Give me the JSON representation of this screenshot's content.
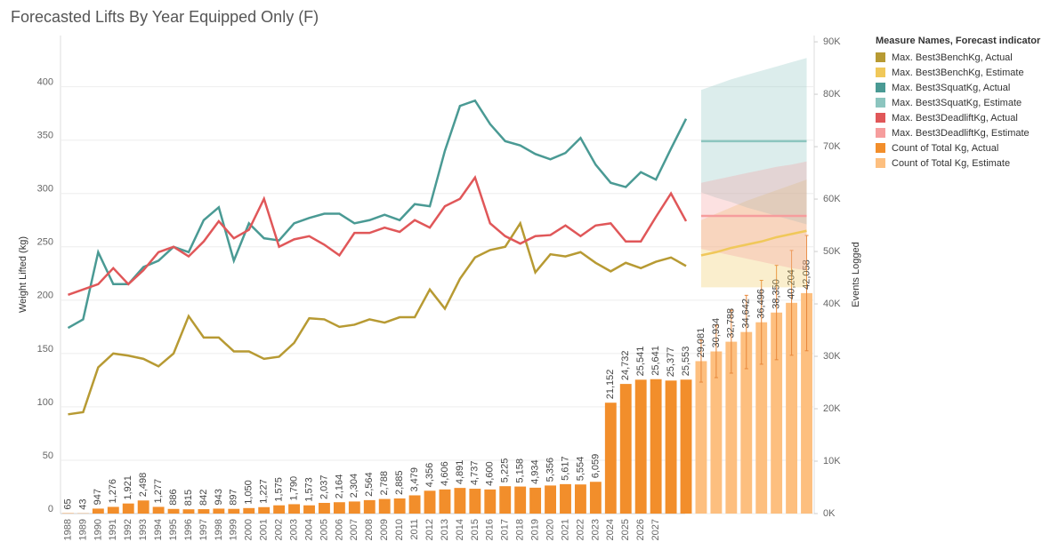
{
  "chart_data": {
    "type": "combo",
    "title": "Forecasted Lifts By Year Equipped Only (F)",
    "y_label": "Weight Lifted (kg)",
    "y2_label": "Events Logged",
    "legend_title": "Measure Names, Forecast indicator",
    "categories": [
      1988,
      1989,
      1990,
      1991,
      1992,
      1993,
      1994,
      1995,
      1996,
      1997,
      1998,
      1999,
      2000,
      2001,
      2002,
      2003,
      2004,
      2005,
      2006,
      2007,
      2008,
      2009,
      2010,
      2011,
      2012,
      2013,
      2014,
      2015,
      2016,
      2017,
      2018,
      2019,
      2020,
      2021,
      2022,
      2023,
      2024,
      2025,
      2026,
      2027,
      null,
      null,
      null,
      null,
      null,
      null,
      null,
      null,
      null,
      null
    ],
    "ylim": [
      0,
      448
    ],
    "yticks": [
      0,
      50,
      100,
      150,
      200,
      250,
      300,
      350,
      400
    ],
    "y2lim": [
      0,
      91200
    ],
    "y2ticks": [
      {
        "value": 0,
        "label": "0K"
      },
      {
        "value": 10000,
        "label": "10K"
      },
      {
        "value": 20000,
        "label": "20K"
      },
      {
        "value": 30000,
        "label": "30K"
      },
      {
        "value": 40000,
        "label": "40K"
      },
      {
        "value": 50000,
        "label": "50K"
      },
      {
        "value": 60000,
        "label": "60K"
      },
      {
        "value": 70000,
        "label": "70K"
      },
      {
        "value": 80000,
        "label": "80K"
      },
      {
        "value": 90000,
        "label": "90K"
      }
    ],
    "grid": true,
    "series": [
      {
        "name": "Max. Best3BenchKg, Actual",
        "type": "line",
        "color": "#b79a33",
        "values": [
          93,
          95,
          137,
          150,
          148,
          145,
          138,
          150,
          185,
          165,
          165,
          152,
          152,
          145,
          147,
          160,
          183,
          182,
          175,
          177,
          182,
          179,
          184,
          184,
          210,
          192,
          220,
          240,
          247,
          250,
          272,
          226,
          243,
          241,
          245,
          235,
          227,
          235,
          230,
          236,
          240,
          232,
          null,
          null,
          null,
          null,
          null,
          null,
          null,
          null
        ]
      },
      {
        "name": "Max. Best3BenchKg, Estimate",
        "type": "line",
        "color": "#f0c85a",
        "values": [
          null,
          null,
          null,
          null,
          null,
          null,
          null,
          null,
          null,
          null,
          null,
          null,
          null,
          null,
          null,
          null,
          null,
          null,
          null,
          null,
          null,
          null,
          null,
          null,
          null,
          null,
          null,
          null,
          null,
          null,
          null,
          null,
          null,
          null,
          null,
          null,
          null,
          null,
          null,
          null,
          null,
          null,
          242,
          245,
          249,
          252,
          255,
          259,
          262,
          265
        ],
        "lower": [
          null,
          null,
          null,
          null,
          null,
          null,
          null,
          null,
          null,
          null,
          null,
          null,
          null,
          null,
          null,
          null,
          null,
          null,
          null,
          null,
          null,
          null,
          null,
          null,
          null,
          null,
          null,
          null,
          null,
          null,
          null,
          null,
          null,
          null,
          null,
          null,
          null,
          null,
          null,
          null,
          null,
          null,
          212,
          212,
          212,
          212,
          212,
          212,
          212,
          212
        ],
        "upper": [
          null,
          null,
          null,
          null,
          null,
          null,
          null,
          null,
          null,
          null,
          null,
          null,
          null,
          null,
          null,
          null,
          null,
          null,
          null,
          null,
          null,
          null,
          null,
          null,
          null,
          null,
          null,
          null,
          null,
          null,
          null,
          null,
          null,
          null,
          null,
          null,
          null,
          null,
          null,
          null,
          null,
          null,
          275,
          281,
          287,
          293,
          298,
          303,
          308,
          313
        ]
      },
      {
        "name": "Max. Best3SquatKg, Actual",
        "type": "line",
        "color": "#4a9a94",
        "values": [
          174,
          182,
          245,
          215,
          215,
          231,
          237,
          250,
          245,
          275,
          287,
          237,
          272,
          258,
          256,
          272,
          277,
          281,
          281,
          272,
          275,
          280,
          275,
          290,
          288,
          340,
          382,
          387,
          365,
          349,
          345,
          337,
          332,
          338,
          352,
          327,
          310,
          306,
          320,
          313,
          342,
          370,
          null,
          null,
          null,
          null,
          null,
          null,
          null,
          null
        ]
      },
      {
        "name": "Max. Best3SquatKg, Estimate",
        "type": "line",
        "color": "#8cc5bf",
        "values": [
          null,
          null,
          null,
          null,
          null,
          null,
          null,
          null,
          null,
          null,
          null,
          null,
          null,
          null,
          null,
          null,
          null,
          null,
          null,
          null,
          null,
          null,
          null,
          null,
          null,
          null,
          null,
          null,
          null,
          null,
          null,
          null,
          null,
          null,
          null,
          null,
          null,
          null,
          null,
          null,
          null,
          null,
          349,
          349,
          349,
          349,
          349,
          349,
          349,
          349
        ],
        "lower": [
          null,
          null,
          null,
          null,
          null,
          null,
          null,
          null,
          null,
          null,
          null,
          null,
          null,
          null,
          null,
          null,
          null,
          null,
          null,
          null,
          null,
          null,
          null,
          null,
          null,
          null,
          null,
          null,
          null,
          null,
          null,
          null,
          null,
          null,
          null,
          null,
          null,
          null,
          null,
          null,
          null,
          null,
          301,
          296,
          292,
          287,
          283,
          279,
          275,
          271
        ],
        "upper": [
          null,
          null,
          null,
          null,
          null,
          null,
          null,
          null,
          null,
          null,
          null,
          null,
          null,
          null,
          null,
          null,
          null,
          null,
          null,
          null,
          null,
          null,
          null,
          null,
          null,
          null,
          null,
          null,
          null,
          null,
          null,
          null,
          null,
          null,
          null,
          null,
          null,
          null,
          null,
          null,
          null,
          null,
          397,
          402,
          407,
          411,
          415,
          419,
          423,
          427
        ]
      },
      {
        "name": "Max. Best3DeadliftKg, Actual",
        "type": "line",
        "color": "#e05759",
        "values": [
          205,
          210,
          215,
          230,
          215,
          228,
          245,
          250,
          241,
          255,
          274,
          258,
          266,
          295,
          250,
          257,
          260,
          252,
          242,
          263,
          263,
          268,
          264,
          275,
          268,
          288,
          295,
          315,
          272,
          260,
          253,
          260,
          261,
          270,
          260,
          270,
          272,
          255,
          255,
          278,
          300,
          274,
          null,
          null,
          null,
          null,
          null,
          null,
          null,
          null
        ]
      },
      {
        "name": "Max. Best3DeadliftKg, Estimate",
        "type": "line",
        "color": "#f69d9d",
        "values": [
          null,
          null,
          null,
          null,
          null,
          null,
          null,
          null,
          null,
          null,
          null,
          null,
          null,
          null,
          null,
          null,
          null,
          null,
          null,
          null,
          null,
          null,
          null,
          null,
          null,
          null,
          null,
          null,
          null,
          null,
          null,
          null,
          null,
          null,
          null,
          null,
          null,
          null,
          null,
          null,
          null,
          null,
          279,
          279,
          279,
          279,
          279,
          279,
          279,
          279
        ],
        "lower": [
          null,
          null,
          null,
          null,
          null,
          null,
          null,
          null,
          null,
          null,
          null,
          null,
          null,
          null,
          null,
          null,
          null,
          null,
          null,
          null,
          null,
          null,
          null,
          null,
          null,
          null,
          null,
          null,
          null,
          null,
          null,
          null,
          null,
          null,
          null,
          null,
          null,
          null,
          null,
          null,
          null,
          null,
          248,
          245,
          242,
          239,
          236,
          233,
          230,
          228
        ],
        "upper": [
          null,
          null,
          null,
          null,
          null,
          null,
          null,
          null,
          null,
          null,
          null,
          null,
          null,
          null,
          null,
          null,
          null,
          null,
          null,
          null,
          null,
          null,
          null,
          null,
          null,
          null,
          null,
          null,
          null,
          null,
          null,
          null,
          null,
          null,
          null,
          null,
          null,
          null,
          null,
          null,
          null,
          null,
          310,
          313,
          316,
          319,
          322,
          325,
          327,
          330
        ]
      },
      {
        "name": "Count of Total Kg, Actual",
        "type": "bar",
        "axis": "y2",
        "color": "#f28e2b",
        "values": [
          65,
          43,
          947,
          1276,
          1921,
          2498,
          1277,
          886,
          815,
          842,
          943,
          897,
          1050,
          1227,
          1575,
          1790,
          1573,
          2037,
          2164,
          2304,
          2564,
          2788,
          2885,
          3479,
          4356,
          4606,
          4891,
          4737,
          4600,
          5225,
          5158,
          4934,
          5356,
          5617,
          5554,
          6059,
          21152,
          24732,
          25541,
          25641,
          25377,
          25553,
          null,
          null,
          null,
          null,
          null,
          null,
          null,
          null
        ],
        "value_labels": [
          "65",
          "43",
          "947",
          "1,276",
          "1,921",
          "2,498",
          "1,277",
          "886",
          "815",
          "842",
          "943",
          "897",
          "1,050",
          "1,227",
          "1,575",
          "1,790",
          "1,573",
          "2,037",
          "2,164",
          "2,304",
          "2,564",
          "2,788",
          "2,885",
          "3,479",
          "4,356",
          "4,606",
          "4,891",
          "4,737",
          "4,600",
          "5,225",
          "5,158",
          "4,934",
          "5,356",
          "5,617",
          "5,554",
          "6,059",
          "21,152",
          "24,732",
          "25,541",
          "25,641",
          "25,377",
          "25,553",
          null,
          null,
          null,
          null,
          null,
          null,
          null,
          null
        ]
      },
      {
        "name": "Count of Total Kg, Estimate",
        "type": "bar",
        "axis": "y2",
        "color": "#fdbf7f",
        "values": [
          null,
          null,
          null,
          null,
          null,
          null,
          null,
          null,
          null,
          null,
          null,
          null,
          null,
          null,
          null,
          null,
          null,
          null,
          null,
          null,
          null,
          null,
          null,
          null,
          null,
          null,
          null,
          null,
          null,
          null,
          null,
          null,
          null,
          null,
          null,
          null,
          null,
          null,
          null,
          null,
          null,
          null,
          29081,
          30934,
          32788,
          34642,
          36496,
          38350,
          40204,
          42058
        ],
        "value_labels": [
          null,
          null,
          null,
          null,
          null,
          null,
          null,
          null,
          null,
          null,
          null,
          null,
          null,
          null,
          null,
          null,
          null,
          null,
          null,
          null,
          null,
          null,
          null,
          null,
          null,
          null,
          null,
          null,
          null,
          null,
          null,
          null,
          null,
          null,
          null,
          null,
          null,
          null,
          null,
          null,
          null,
          null,
          "29,081",
          "30,934",
          "32,788",
          "34,642",
          "36,496",
          "38,350",
          "40,204",
          "42,058"
        ],
        "errors": [
          null,
          null,
          null,
          null,
          null,
          null,
          null,
          null,
          null,
          null,
          null,
          null,
          null,
          null,
          null,
          null,
          null,
          null,
          null,
          null,
          null,
          null,
          null,
          null,
          null,
          null,
          null,
          null,
          null,
          null,
          null,
          null,
          null,
          null,
          null,
          null,
          null,
          null,
          null,
          null,
          null,
          null,
          4000,
          5000,
          6000,
          7000,
          8000,
          9000,
          10000,
          11000
        ]
      }
    ]
  }
}
